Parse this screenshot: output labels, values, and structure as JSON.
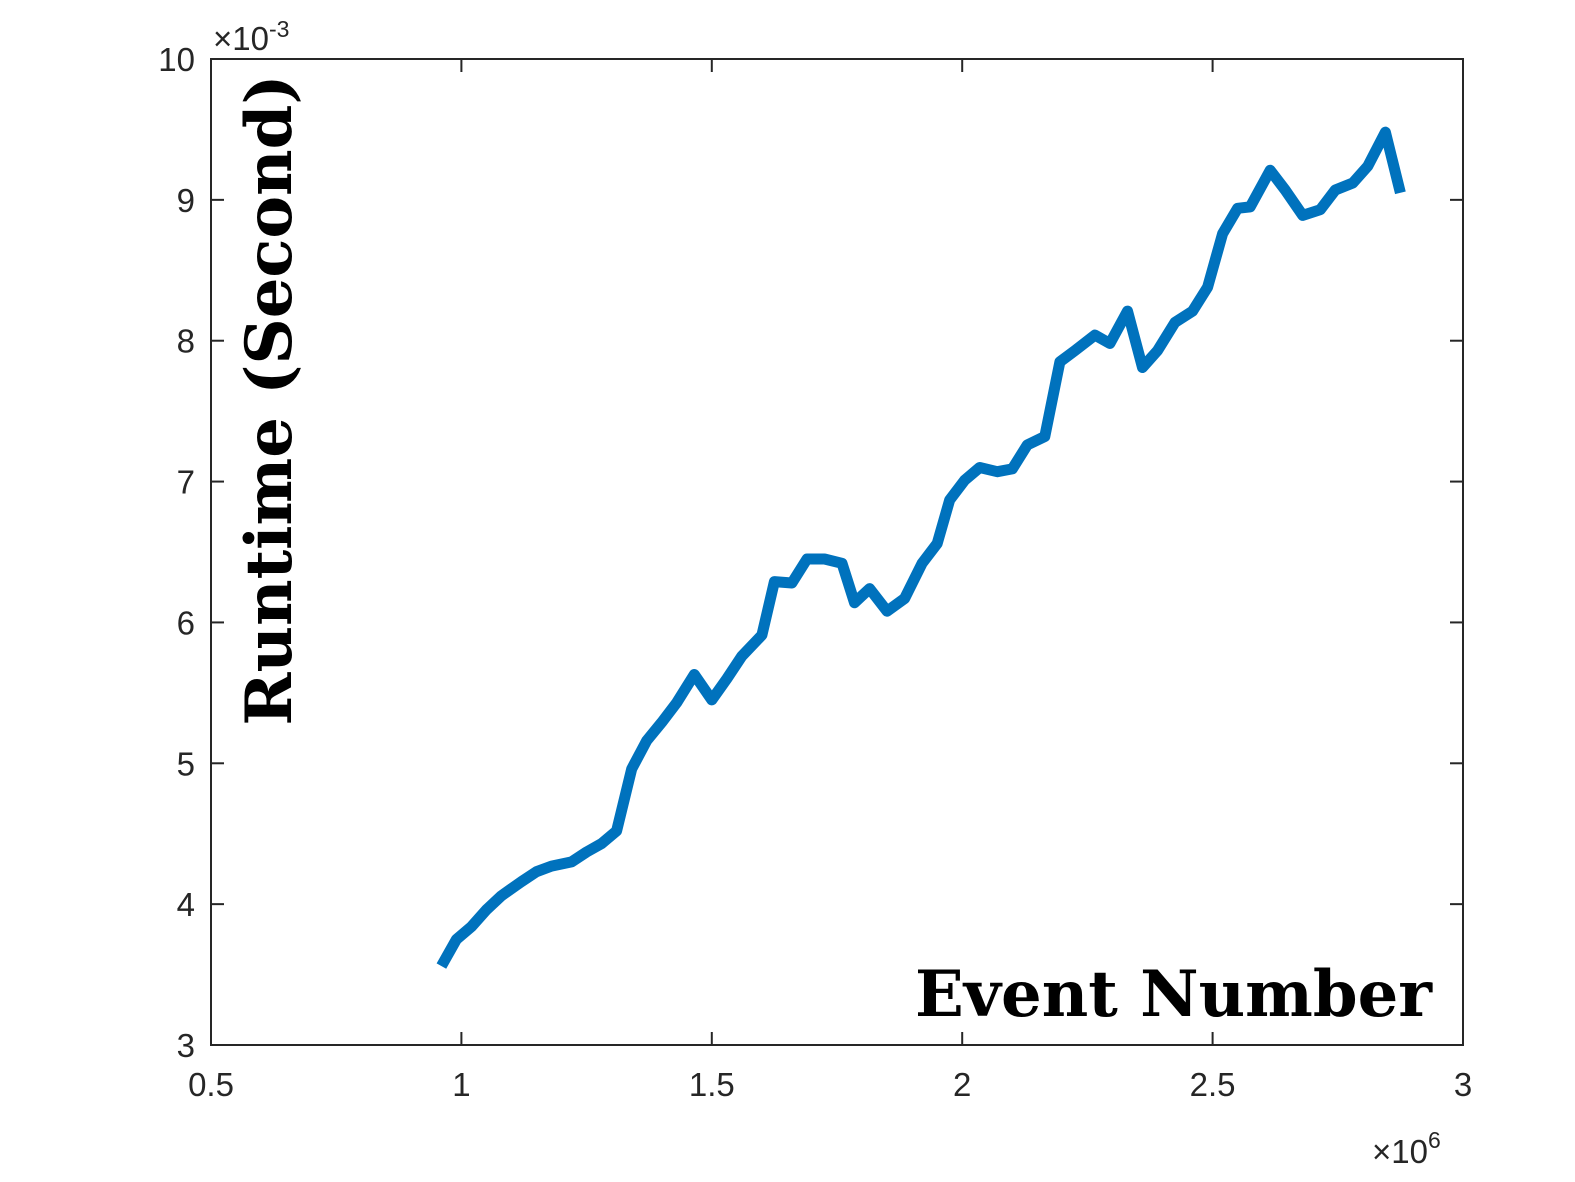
{
  "chart_data": {
    "type": "line",
    "xlabel": "Event Number",
    "ylabel": "Runtime (Second)",
    "x_exponent_label": {
      "base": "×10",
      "power": "6"
    },
    "y_exponent_label": {
      "base": "×10",
      "power": "-3"
    },
    "xlim": [
      0.5,
      3
    ],
    "ylim": [
      3,
      10
    ],
    "x_ticks": [
      0.5,
      1,
      1.5,
      2,
      2.5,
      3
    ],
    "y_ticks": [
      3,
      4,
      5,
      6,
      7,
      8,
      9,
      10
    ],
    "x_tick_labels": [
      "0.5",
      "1",
      "1.5",
      "2",
      "2.5",
      "3"
    ],
    "y_tick_labels": [
      "3",
      "4",
      "5",
      "6",
      "7",
      "8",
      "9",
      "10"
    ],
    "grid": false,
    "colors": {
      "line": "#0072BD",
      "axes": "#262626"
    },
    "series": [
      {
        "x": [
          0.96,
          0.99,
          1.02,
          1.05,
          1.08,
          1.12,
          1.15,
          1.18,
          1.22,
          1.25,
          1.28,
          1.31,
          1.34,
          1.37,
          1.4,
          1.43,
          1.465,
          1.5,
          1.53,
          1.56,
          1.6,
          1.625,
          1.66,
          1.69,
          1.725,
          1.76,
          1.785,
          1.815,
          1.85,
          1.885,
          1.92,
          1.95,
          1.975,
          2.005,
          2.035,
          2.07,
          2.1,
          2.13,
          2.165,
          2.195,
          2.225,
          2.265,
          2.295,
          2.33,
          2.36,
          2.39,
          2.425,
          2.46,
          2.49,
          2.52,
          2.55,
          2.575,
          2.615,
          2.645,
          2.68,
          2.715,
          2.745,
          2.78,
          2.81,
          2.845,
          2.875
        ],
        "values": [
          3.56,
          3.75,
          3.84,
          3.96,
          4.06,
          4.16,
          4.23,
          4.27,
          4.3,
          4.37,
          4.43,
          4.52,
          4.96,
          5.16,
          5.29,
          5.43,
          5.63,
          5.45,
          5.6,
          5.76,
          5.91,
          6.29,
          6.28,
          6.45,
          6.45,
          6.42,
          6.14,
          6.24,
          6.08,
          6.17,
          6.42,
          6.56,
          6.87,
          7.01,
          7.1,
          7.07,
          7.09,
          7.26,
          7.32,
          7.85,
          7.93,
          8.04,
          7.98,
          8.21,
          7.81,
          7.93,
          8.13,
          8.21,
          8.38,
          8.76,
          8.94,
          8.95,
          9.21,
          9.07,
          8.89,
          8.93,
          9.07,
          9.12,
          9.24,
          9.48,
          9.05
        ]
      }
    ]
  }
}
